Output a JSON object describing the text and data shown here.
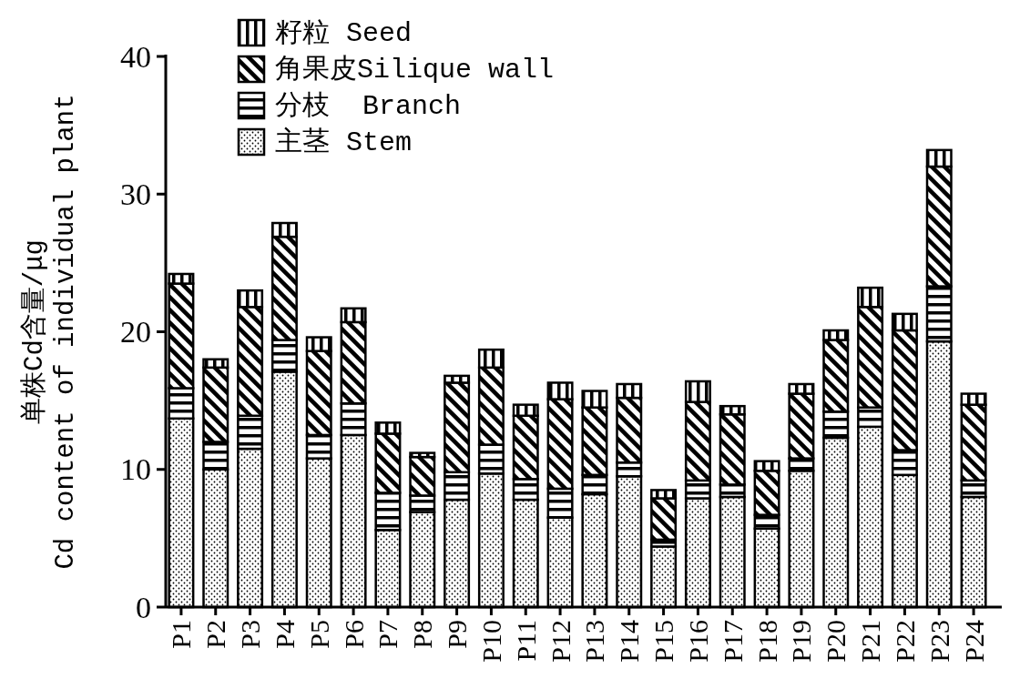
{
  "chart_data": {
    "type": "bar",
    "stacked": true,
    "ylabel": "单株Cd含量/μg\nCd content of individual plant",
    "categories": [
      "P1",
      "P2",
      "P3",
      "P4",
      "P5",
      "P6",
      "P7",
      "P8",
      "P9",
      "P10",
      "P11",
      "P12",
      "P13",
      "P14",
      "P15",
      "P16",
      "P17",
      "P18",
      "P19",
      "P20",
      "P21",
      "P22",
      "P23",
      "P24"
    ],
    "series": [
      {
        "name": "主茎 Stem",
        "color": "#000000",
        "values": [
          13.7,
          10.0,
          11.5,
          17.1,
          10.8,
          12.5,
          5.6,
          6.9,
          7.8,
          9.7,
          7.8,
          6.5,
          8.2,
          9.5,
          4.4,
          7.9,
          8.0,
          5.7,
          9.9,
          12.3,
          13.1,
          9.6,
          19.3,
          8.0
        ]
      },
      {
        "name": "分枝  Branch",
        "color": "#000000",
        "values": [
          2.2,
          2.0,
          2.4,
          2.3,
          1.7,
          2.3,
          2.7,
          1.2,
          2.0,
          2.1,
          1.5,
          2.1,
          1.4,
          1.0,
          0.5,
          1.3,
          0.9,
          1.0,
          0.9,
          1.9,
          1.4,
          1.8,
          4.0,
          1.2
        ]
      },
      {
        "name": "角果皮Silique wall",
        "color": "#000000",
        "values": [
          7.6,
          5.4,
          7.9,
          7.5,
          6.1,
          5.9,
          4.3,
          2.8,
          6.5,
          5.6,
          4.6,
          6.5,
          4.9,
          4.7,
          3.0,
          5.7,
          5.1,
          3.2,
          4.7,
          5.2,
          7.3,
          8.7,
          8.7,
          5.5
        ]
      },
      {
        "name": "籽粒 Seed",
        "color": "#000000",
        "values": [
          0.7,
          0.6,
          1.2,
          1.0,
          1.0,
          1.0,
          0.8,
          0.3,
          0.5,
          1.3,
          0.8,
          1.2,
          1.2,
          1.0,
          0.6,
          1.5,
          0.6,
          0.7,
          0.7,
          0.7,
          1.4,
          1.2,
          1.2,
          0.8
        ]
      }
    ],
    "ylim": [
      0,
      40
    ],
    "yticks": [
      0,
      10,
      20,
      30,
      40
    ],
    "legend": "top left"
  }
}
